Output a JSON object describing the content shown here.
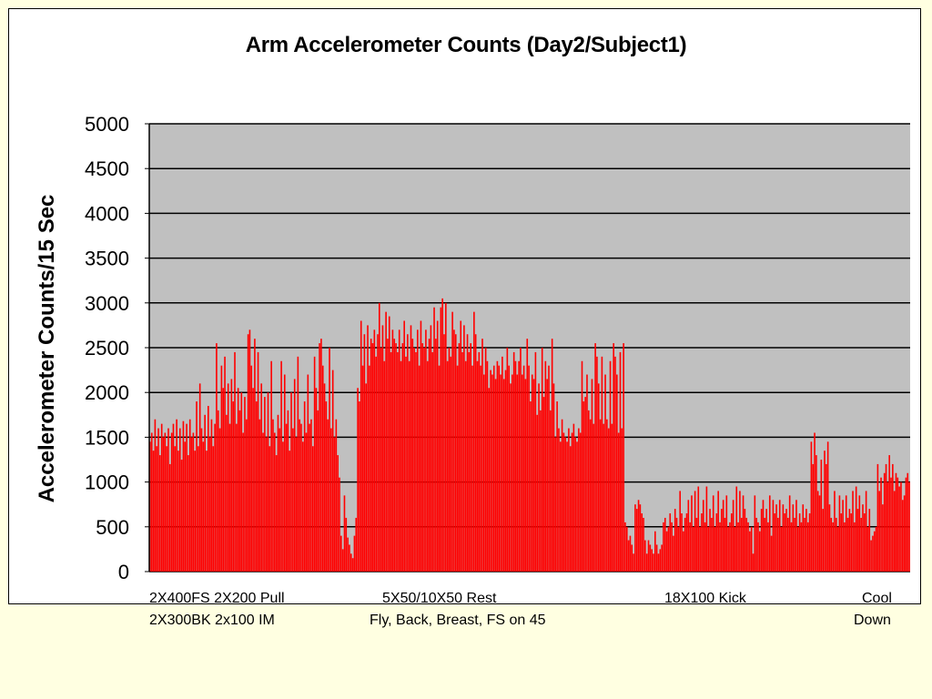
{
  "chart_data": {
    "type": "bar",
    "title": "Arm Accelerometer Counts (Day2/Subject1)",
    "xlabel": "",
    "ylabel": "Accelerometer Counts/15 Sec",
    "ylim": [
      0,
      5000
    ],
    "yticks": [
      "0",
      "500",
      "1000",
      "1500",
      "2000",
      "2500",
      "3000",
      "3500",
      "4000",
      "4500",
      "5000"
    ],
    "grid": true,
    "series": [
      {
        "color": "#FF0000",
        "values": [
          1450,
          1550,
          1350,
          1700,
          1400,
          1600,
          1300,
          1650,
          1500,
          1550,
          1400,
          1600,
          1200,
          1550,
          1650,
          1400,
          1700,
          1350,
          1600,
          1250,
          1680,
          1450,
          1650,
          1300,
          1700,
          1500,
          1550,
          1350,
          1900,
          1400,
          2100,
          1600,
          1450,
          1750,
          1350,
          1850,
          1500,
          1700,
          1400,
          1650,
          2550,
          1800,
          1600,
          2300,
          2050,
          2400,
          1750,
          2100,
          1650,
          2150,
          1900,
          2450,
          1650,
          2050,
          1800,
          2000,
          1550,
          1950,
          1700,
          2650,
          2700,
          2300,
          2050,
          2600,
          1900,
          2450,
          1700,
          2100,
          1550,
          1950,
          1500,
          2000,
          1400,
          2350,
          1700,
          1550,
          1300,
          1750,
          1600,
          2350,
          1450,
          2200,
          1650,
          1800,
          1350,
          2000,
          1600,
          2150,
          1500,
          2400,
          1700,
          1650,
          1450,
          1900,
          1550,
          2200,
          1650,
          1700,
          1400,
          2400,
          2050,
          1800,
          2550,
          2600,
          2300,
          2100,
          1900,
          1700,
          2500,
          1600,
          2250,
          1500,
          1700,
          1300,
          1050,
          400,
          250,
          850,
          600,
          380,
          300,
          200,
          150,
          400,
          600,
          2050,
          1900,
          2800,
          2300,
          2650,
          2100,
          2750,
          2300,
          2600,
          2550,
          2700,
          2400,
          2650,
          3000,
          2500,
          2750,
          2350,
          2900,
          2600,
          2850,
          2450,
          2700,
          2600,
          2550,
          2450,
          2700,
          2350,
          2550,
          2800,
          2400,
          2650,
          2350,
          2750,
          2600,
          2500,
          2450,
          2700,
          2300,
          2800,
          2550,
          2500,
          2700,
          2350,
          2600,
          2750,
          2450,
          2950,
          2600,
          2800,
          2300,
          2950,
          3050,
          2650,
          3000,
          2350,
          2500,
          2400,
          2900,
          2700,
          2650,
          2300,
          2550,
          2800,
          2450,
          2750,
          2350,
          2650,
          2450,
          2550,
          2300,
          2900,
          2650,
          2350,
          2450,
          2300,
          2600,
          2200,
          2500,
          2350,
          2050,
          2250,
          2200,
          2300,
          2150,
          2350,
          2300,
          2200,
          2400,
          2150,
          2250,
          2500,
          2300,
          2100,
          2200,
          2450,
          2350,
          2200,
          2350,
          2500,
          2200,
          2300,
          2150,
          2600,
          2300,
          1900,
          2200,
          2150,
          2450,
          1750,
          2100,
          1800,
          2500,
          1950,
          2350,
          2150,
          2300,
          1800,
          2600,
          2100,
          1500,
          1900,
          1600,
          1450,
          1700,
          1550,
          1500,
          1450,
          1600,
          1400,
          1550,
          1650,
          1500,
          1450,
          1600,
          1550,
          2350,
          1900,
          1950,
          2200,
          1800,
          1700,
          2150,
          1650,
          2550,
          2400,
          2100,
          1700,
          2400,
          1650,
          2200,
          1700,
          1600,
          2350,
          1650,
          2550,
          2400,
          2200,
          1550,
          2450,
          1600,
          2550,
          550,
          500,
          350,
          400,
          300,
          200,
          750,
          700,
          800,
          750,
          650,
          600,
          350,
          200,
          350,
          300,
          250,
          200,
          450,
          300,
          200,
          250,
          300,
          550,
          600,
          450,
          500,
          650,
          550,
          400,
          700,
          600,
          500,
          900,
          650,
          450,
          600,
          650,
          800,
          550,
          850,
          500,
          900,
          600,
          950,
          500,
          650,
          800,
          550,
          950,
          500,
          700,
          600,
          850,
          500,
          650,
          900,
          550,
          700,
          800,
          600,
          850,
          500,
          550,
          650,
          800,
          500,
          950,
          550,
          900,
          600,
          850,
          700,
          600,
          550,
          450,
          500,
          200,
          850,
          600,
          550,
          450,
          700,
          800,
          600,
          700,
          550,
          850,
          400,
          800,
          650,
          750,
          600,
          800,
          500,
          750,
          650,
          700,
          600,
          850,
          550,
          750,
          600,
          800,
          500,
          650,
          550,
          750,
          600,
          700,
          550,
          650,
          1450,
          1200,
          1550,
          1300,
          900,
          850,
          1250,
          700,
          1350,
          1200,
          1450,
          750,
          600,
          550,
          900,
          600,
          500,
          850,
          650,
          800,
          550,
          850,
          600,
          700,
          650,
          900,
          550,
          950,
          700,
          850,
          600,
          750,
          650,
          900,
          500,
          700,
          350,
          400,
          450,
          500,
          1200,
          900,
          1050,
          750,
          1100,
          1200,
          1000,
          1300,
          1050,
          1200,
          900,
          1100,
          1050,
          950,
          1000,
          800,
          850,
          1050,
          1100,
          1000
        ]
      }
    ]
  },
  "captions": {
    "group1_line1": "2X400FS  2X200 Pull",
    "group1_line2": "2X300BK   2x100 IM",
    "group2_line1": "5X50/10X50  Rest",
    "group2_line2": "Fly, Back, Breast, FS on 45",
    "group3_line1": "18X100 Kick",
    "group4_line1": "Cool",
    "group4_line2": "Down"
  },
  "colors": {
    "page_bg": "#FFFFE1",
    "plot_bg": "#C0C0C0",
    "bar": "#FF0000",
    "grid": "#000000"
  }
}
